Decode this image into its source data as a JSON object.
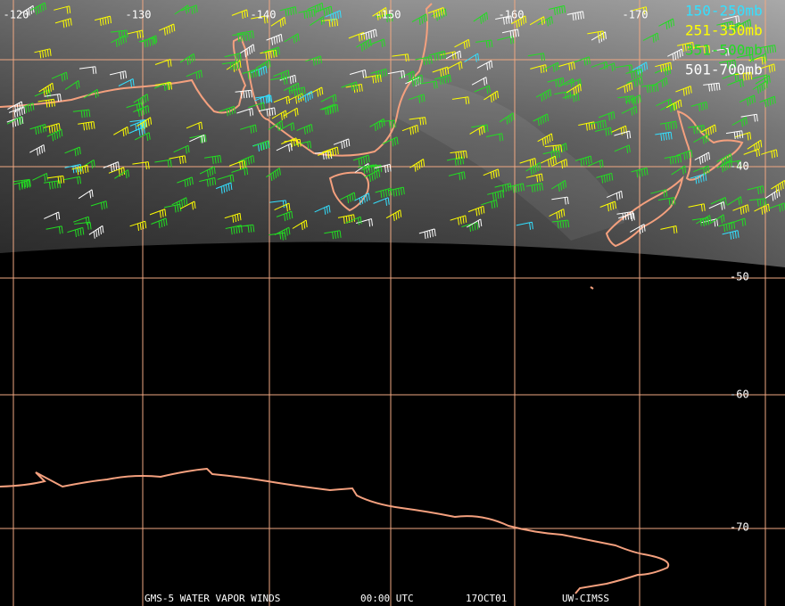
{
  "map": {
    "longitude_labels": [
      "-120",
      "-130",
      "-140",
      "-150",
      "-160",
      "-170"
    ],
    "latitude_labels": [
      "-40",
      "-50",
      "-60",
      "-70"
    ],
    "legend": [
      {
        "label": "150-250mb",
        "color": "#33e0ff"
      },
      {
        "label": "251-350mb",
        "color": "#ffff00"
      },
      {
        "label": "351-500mb",
        "color": "#22dd22"
      },
      {
        "label": "501-700mb",
        "color": "#ffffff"
      }
    ],
    "footer": [
      "GMS-5 WATER VAPOR WINDS",
      "00:00 UTC",
      "17OCT01",
      "UW-CIMSS"
    ]
  }
}
